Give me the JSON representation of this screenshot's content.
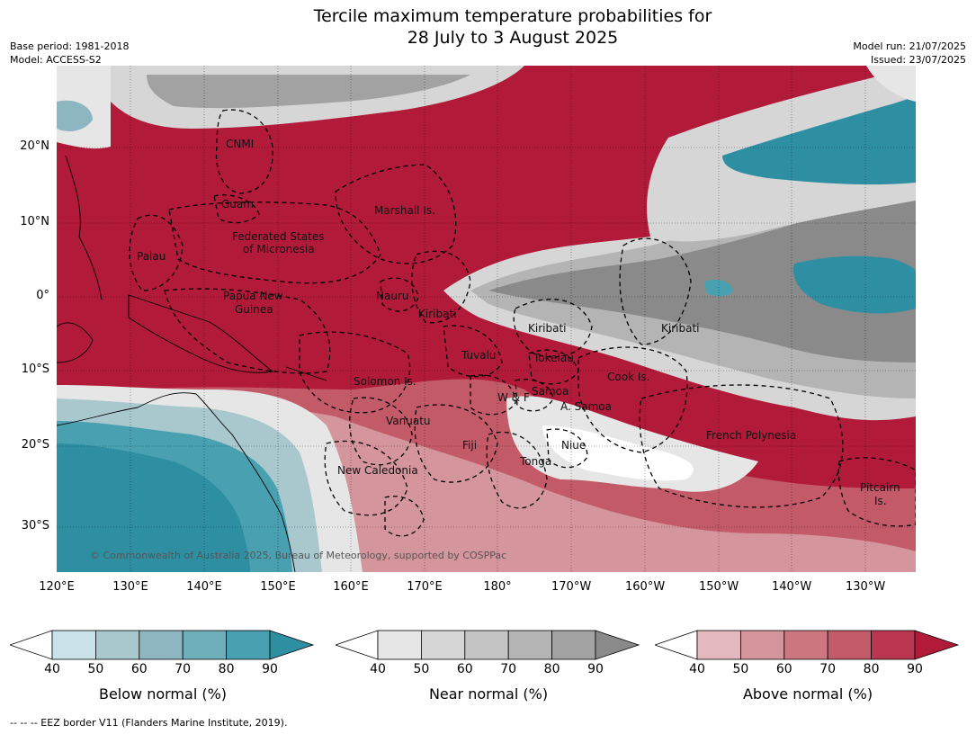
{
  "title": {
    "line1": "Tercile maximum temperature probabilities for",
    "line2": "28 July to 3 August 2025"
  },
  "meta": {
    "base_period": "Base period: 1981-2018",
    "model": "Model: ACCESS-S2",
    "model_run": "Model run: 21/07/2025",
    "issued": "Issued: 23/07/2025"
  },
  "map": {
    "copyright": "© Commonwealth of Australia 2025, Bureau of Meteorology, supported by COSPPac",
    "lon_labels": [
      "120°E",
      "130°E",
      "140°E",
      "150°E",
      "160°E",
      "170°E",
      "180°",
      "170°W",
      "160°W",
      "150°W",
      "140°W",
      "130°W"
    ],
    "lat_labels": [
      "20°N",
      "10°N",
      "0°",
      "10°S",
      "20°S",
      "30°S"
    ],
    "region_labels": [
      {
        "id": "cnmi",
        "text": "CNMI"
      },
      {
        "id": "guam",
        "text": "Guam"
      },
      {
        "id": "marshall",
        "text": "Marshall Is."
      },
      {
        "id": "fsm1",
        "text": "Federated States"
      },
      {
        "id": "fsm2",
        "text": "of Micronesia"
      },
      {
        "id": "palau",
        "text": "Palau"
      },
      {
        "id": "png1",
        "text": "Papua New"
      },
      {
        "id": "png2",
        "text": "Guinea"
      },
      {
        "id": "nauru",
        "text": "Nauru"
      },
      {
        "id": "kiribati_w",
        "text": "Kiribati"
      },
      {
        "id": "kiribati_c",
        "text": "Kiribati"
      },
      {
        "id": "kiribati_e",
        "text": "Kiribati"
      },
      {
        "id": "tuvalu",
        "text": "Tuvalu"
      },
      {
        "id": "tokelau",
        "text": "Tokelau"
      },
      {
        "id": "cook",
        "text": "Cook Is."
      },
      {
        "id": "solomon",
        "text": "Solomon Is."
      },
      {
        "id": "samoa",
        "text": "Samoa"
      },
      {
        "id": "wf",
        "text": "W & F"
      },
      {
        "id": "asamoa",
        "text": "A. Samoa"
      },
      {
        "id": "vanuatu",
        "text": "Vanuatu"
      },
      {
        "id": "fiji",
        "text": "Fiji"
      },
      {
        "id": "niue",
        "text": "Niue"
      },
      {
        "id": "frenchpoly",
        "text": "French Polynesia"
      },
      {
        "id": "tonga",
        "text": "Tonga"
      },
      {
        "id": "newcal",
        "text": "New Caledonia"
      },
      {
        "id": "pitcairn1",
        "text": "Pitcairn"
      },
      {
        "id": "pitcairn2",
        "text": "Is."
      }
    ],
    "colors": {
      "above_dark": "#b11a38",
      "near_dark": "#8a8a8a",
      "below_dark": "#2e8fa3",
      "ocean_white": "#f0f0f0"
    }
  },
  "colorbars": [
    {
      "id": "below",
      "title": "Below normal (%)",
      "ticks": [
        "40",
        "50",
        "60",
        "70",
        "80",
        "90"
      ],
      "colors": [
        "#c9e1e7",
        "#a8c8cd",
        "#8eb6c1",
        "#6faebb",
        "#48a0b0",
        "#2e8fa3"
      ]
    },
    {
      "id": "near",
      "title": "Near normal (%)",
      "ticks": [
        "40",
        "50",
        "60",
        "70",
        "80",
        "90"
      ],
      "colors": [
        "#e6e6e6",
        "#d6d6d6",
        "#c4c4c4",
        "#b4b4b4",
        "#a2a2a2",
        "#8a8a8a"
      ]
    },
    {
      "id": "above",
      "title": "Above normal (%)",
      "ticks": [
        "40",
        "50",
        "60",
        "70",
        "80",
        "90"
      ],
      "colors": [
        "#e3b8bf",
        "#d4959d",
        "#cc7780",
        "#c35a68",
        "#b93550",
        "#b11a38"
      ]
    }
  ],
  "footnote": "--  --  -- EEZ border V11 (Flanders Marine Institute, 2019)."
}
